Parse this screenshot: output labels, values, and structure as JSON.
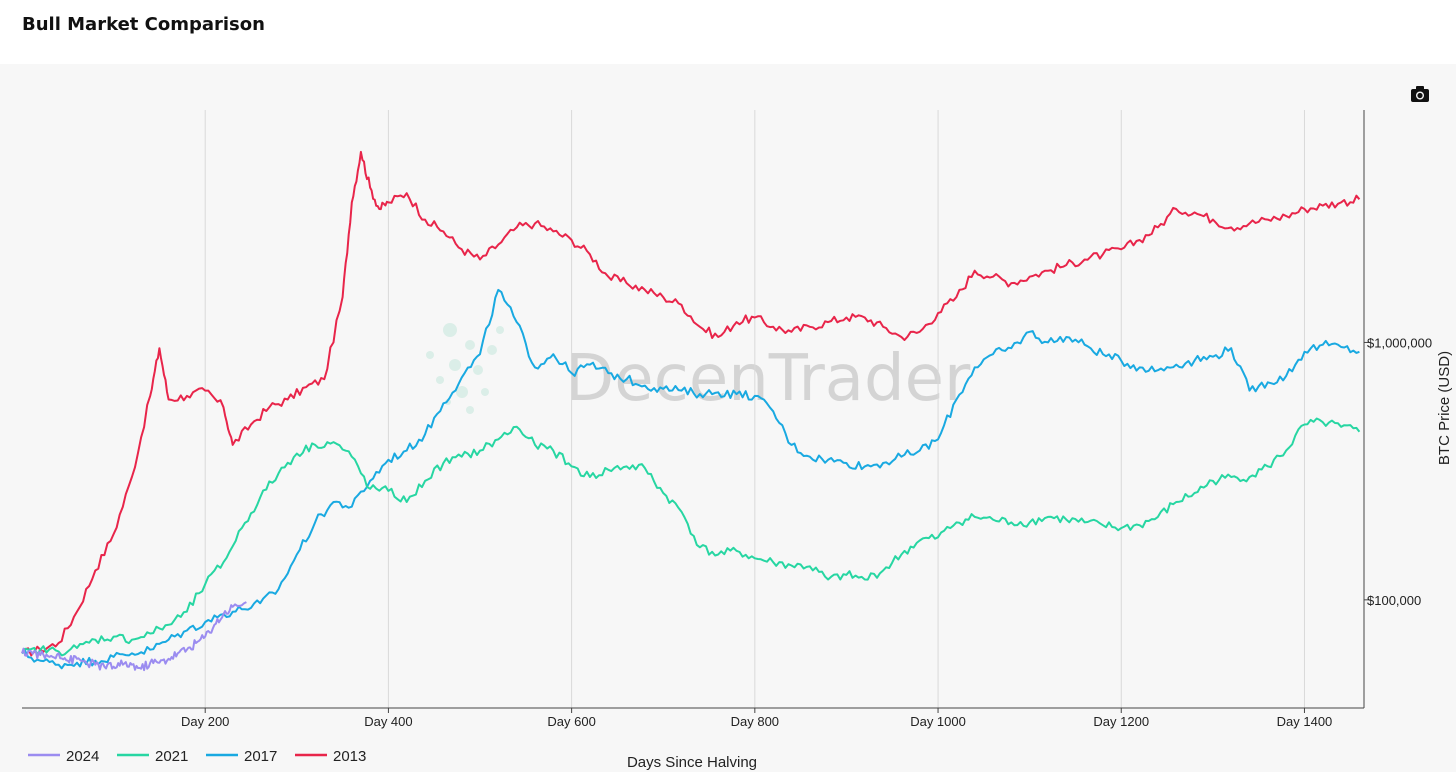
{
  "page": {
    "title": "Bull Market Comparison"
  },
  "toolbar": {
    "camera_icon": "camera-icon"
  },
  "watermark": "DecenTrader",
  "chart_data": {
    "type": "line",
    "title": "Bull Market Comparison",
    "xlabel": "Days Since Halving",
    "ylabel": "BTC Price (USD)",
    "yscale": "log",
    "xlim": [
      0,
      1465
    ],
    "ylim": [
      38000,
      8000000
    ],
    "grid": "vertical",
    "legend": "bottom-left",
    "x_ticks": [
      {
        "value": 200,
        "label": "Day 200"
      },
      {
        "value": 400,
        "label": "Day 400"
      },
      {
        "value": 600,
        "label": "Day 600"
      },
      {
        "value": 800,
        "label": "Day 800"
      },
      {
        "value": 1000,
        "label": "Day 1000"
      },
      {
        "value": 1200,
        "label": "Day 1200"
      },
      {
        "value": 1400,
        "label": "Day 1400"
      }
    ],
    "y_ticks": [
      {
        "value": 100000,
        "label": "$100,000"
      },
      {
        "value": 1000000,
        "label": "$1,000,000"
      }
    ],
    "series": [
      {
        "name": "2024",
        "color": "#9b8cf0",
        "points": [
          [
            0,
            62000
          ],
          [
            10,
            63000
          ],
          [
            20,
            61000
          ],
          [
            30,
            60000
          ],
          [
            40,
            62000
          ],
          [
            50,
            58000
          ],
          [
            60,
            59000
          ],
          [
            70,
            57000
          ],
          [
            80,
            56000
          ],
          [
            90,
            55000
          ],
          [
            100,
            55000
          ],
          [
            110,
            56000
          ],
          [
            120,
            56000
          ],
          [
            130,
            54000
          ],
          [
            140,
            57000
          ],
          [
            150,
            57000
          ],
          [
            160,
            59000
          ],
          [
            170,
            62000
          ],
          [
            180,
            64000
          ],
          [
            190,
            68000
          ],
          [
            200,
            72000
          ],
          [
            210,
            80000
          ],
          [
            220,
            88000
          ],
          [
            230,
            94000
          ],
          [
            245,
            98000
          ]
        ]
      },
      {
        "name": "2021",
        "color": "#27d6a2",
        "points": [
          [
            0,
            62000
          ],
          [
            20,
            64000
          ],
          [
            40,
            63000
          ],
          [
            60,
            65000
          ],
          [
            80,
            70000
          ],
          [
            100,
            72000
          ],
          [
            120,
            70000
          ],
          [
            140,
            74000
          ],
          [
            160,
            80000
          ],
          [
            180,
            90000
          ],
          [
            200,
            115000
          ],
          [
            220,
            140000
          ],
          [
            240,
            190000
          ],
          [
            260,
            250000
          ],
          [
            280,
            310000
          ],
          [
            300,
            370000
          ],
          [
            320,
            400000
          ],
          [
            340,
            410000
          ],
          [
            360,
            360000
          ],
          [
            380,
            270000
          ],
          [
            400,
            265000
          ],
          [
            420,
            240000
          ],
          [
            440,
            290000
          ],
          [
            460,
            340000
          ],
          [
            480,
            360000
          ],
          [
            500,
            380000
          ],
          [
            520,
            420000
          ],
          [
            540,
            470000
          ],
          [
            560,
            400000
          ],
          [
            580,
            380000
          ],
          [
            600,
            330000
          ],
          [
            620,
            300000
          ],
          [
            640,
            320000
          ],
          [
            660,
            330000
          ],
          [
            680,
            325000
          ],
          [
            700,
            260000
          ],
          [
            720,
            220000
          ],
          [
            740,
            160000
          ],
          [
            760,
            150000
          ],
          [
            780,
            155000
          ],
          [
            800,
            145000
          ],
          [
            820,
            140000
          ],
          [
            840,
            136000
          ],
          [
            860,
            135000
          ],
          [
            880,
            120000
          ],
          [
            900,
            125000
          ],
          [
            920,
            120000
          ],
          [
            940,
            130000
          ],
          [
            960,
            150000
          ],
          [
            980,
            170000
          ],
          [
            1000,
            175000
          ],
          [
            1020,
            200000
          ],
          [
            1040,
            210000
          ],
          [
            1060,
            205000
          ],
          [
            1080,
            200000
          ],
          [
            1100,
            200000
          ],
          [
            1120,
            210000
          ],
          [
            1140,
            205000
          ],
          [
            1160,
            200000
          ],
          [
            1180,
            195000
          ],
          [
            1200,
            190000
          ],
          [
            1220,
            195000
          ],
          [
            1240,
            210000
          ],
          [
            1260,
            240000
          ],
          [
            1280,
            260000
          ],
          [
            1300,
            290000
          ],
          [
            1320,
            300000
          ],
          [
            1340,
            300000
          ],
          [
            1360,
            330000
          ],
          [
            1380,
            380000
          ],
          [
            1400,
            480000
          ],
          [
            1420,
            490000
          ],
          [
            1440,
            470000
          ],
          [
            1460,
            450000
          ]
        ]
      },
      {
        "name": "2017",
        "color": "#19a9e1",
        "points": [
          [
            0,
            62000
          ],
          [
            20,
            58000
          ],
          [
            40,
            56000
          ],
          [
            60,
            57000
          ],
          [
            80,
            58000
          ],
          [
            100,
            60000
          ],
          [
            120,
            62000
          ],
          [
            140,
            64000
          ],
          [
            160,
            70000
          ],
          [
            180,
            76000
          ],
          [
            200,
            82000
          ],
          [
            220,
            88000
          ],
          [
            240,
            92000
          ],
          [
            260,
            97000
          ],
          [
            280,
            110000
          ],
          [
            300,
            150000
          ],
          [
            320,
            200000
          ],
          [
            340,
            240000
          ],
          [
            360,
            230000
          ],
          [
            380,
            290000
          ],
          [
            400,
            350000
          ],
          [
            420,
            380000
          ],
          [
            440,
            440000
          ],
          [
            460,
            580000
          ],
          [
            480,
            730000
          ],
          [
            500,
            900000
          ],
          [
            520,
            1600000
          ],
          [
            540,
            1200000
          ],
          [
            560,
            800000
          ],
          [
            580,
            900000
          ],
          [
            600,
            760000
          ],
          [
            620,
            820000
          ],
          [
            640,
            760000
          ],
          [
            660,
            720000
          ],
          [
            680,
            680000
          ],
          [
            700,
            660000
          ],
          [
            720,
            650000
          ],
          [
            740,
            630000
          ],
          [
            760,
            640000
          ],
          [
            780,
            630000
          ],
          [
            800,
            620000
          ],
          [
            820,
            540000
          ],
          [
            840,
            400000
          ],
          [
            860,
            360000
          ],
          [
            880,
            350000
          ],
          [
            900,
            340000
          ],
          [
            920,
            330000
          ],
          [
            940,
            340000
          ],
          [
            960,
            360000
          ],
          [
            980,
            380000
          ],
          [
            1000,
            420000
          ],
          [
            1020,
            600000
          ],
          [
            1040,
            800000
          ],
          [
            1060,
            900000
          ],
          [
            1080,
            950000
          ],
          [
            1100,
            1100000
          ],
          [
            1120,
            1000000
          ],
          [
            1140,
            1050000
          ],
          [
            1160,
            980000
          ],
          [
            1180,
            900000
          ],
          [
            1200,
            850000
          ],
          [
            1220,
            800000
          ],
          [
            1240,
            780000
          ],
          [
            1260,
            820000
          ],
          [
            1280,
            850000
          ],
          [
            1300,
            880000
          ],
          [
            1320,
            950000
          ],
          [
            1340,
            650000
          ],
          [
            1360,
            700000
          ],
          [
            1380,
            740000
          ],
          [
            1400,
            920000
          ],
          [
            1420,
            980000
          ],
          [
            1440,
            960000
          ],
          [
            1460,
            920000
          ]
        ]
      },
      {
        "name": "2013",
        "color": "#e8254a",
        "points": [
          [
            0,
            62000
          ],
          [
            20,
            64000
          ],
          [
            40,
            68000
          ],
          [
            60,
            90000
          ],
          [
            80,
            130000
          ],
          [
            100,
            180000
          ],
          [
            120,
            300000
          ],
          [
            140,
            620000
          ],
          [
            150,
            950000
          ],
          [
            160,
            600000
          ],
          [
            180,
            620000
          ],
          [
            200,
            650000
          ],
          [
            220,
            560000
          ],
          [
            230,
            400000
          ],
          [
            250,
            480000
          ],
          [
            270,
            560000
          ],
          [
            290,
            600000
          ],
          [
            310,
            670000
          ],
          [
            330,
            720000
          ],
          [
            350,
            1500000
          ],
          [
            360,
            3500000
          ],
          [
            370,
            5500000
          ],
          [
            380,
            4000000
          ],
          [
            390,
            3300000
          ],
          [
            400,
            3500000
          ],
          [
            420,
            3800000
          ],
          [
            440,
            3000000
          ],
          [
            460,
            2700000
          ],
          [
            480,
            2300000
          ],
          [
            500,
            2100000
          ],
          [
            520,
            2400000
          ],
          [
            540,
            2800000
          ],
          [
            560,
            2900000
          ],
          [
            580,
            2700000
          ],
          [
            600,
            2500000
          ],
          [
            620,
            2200000
          ],
          [
            640,
            1800000
          ],
          [
            660,
            1700000
          ],
          [
            680,
            1600000
          ],
          [
            700,
            1500000
          ],
          [
            720,
            1400000
          ],
          [
            740,
            1150000
          ],
          [
            760,
            1050000
          ],
          [
            780,
            1200000
          ],
          [
            800,
            1250000
          ],
          [
            820,
            1150000
          ],
          [
            840,
            1100000
          ],
          [
            860,
            1150000
          ],
          [
            880,
            1200000
          ],
          [
            900,
            1250000
          ],
          [
            920,
            1250000
          ],
          [
            940,
            1150000
          ],
          [
            960,
            1050000
          ],
          [
            980,
            1100000
          ],
          [
            1000,
            1300000
          ],
          [
            1020,
            1500000
          ],
          [
            1040,
            1900000
          ],
          [
            1060,
            1800000
          ],
          [
            1080,
            1700000
          ],
          [
            1100,
            1800000
          ],
          [
            1120,
            1900000
          ],
          [
            1140,
            2000000
          ],
          [
            1160,
            2100000
          ],
          [
            1180,
            2200000
          ],
          [
            1200,
            2300000
          ],
          [
            1220,
            2500000
          ],
          [
            1240,
            2800000
          ],
          [
            1260,
            3300000
          ],
          [
            1280,
            3200000
          ],
          [
            1300,
            3000000
          ],
          [
            1320,
            2800000
          ],
          [
            1340,
            2900000
          ],
          [
            1360,
            3000000
          ],
          [
            1380,
            3100000
          ],
          [
            1400,
            3300000
          ],
          [
            1420,
            3400000
          ],
          [
            1440,
            3500000
          ],
          [
            1460,
            3600000
          ]
        ]
      }
    ]
  }
}
